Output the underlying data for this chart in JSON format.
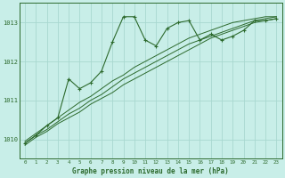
{
  "background_color": "#c8eee8",
  "plot_bg_color": "#c8eee8",
  "grid_color": "#a8d8d0",
  "line_color": "#2d6a2d",
  "xlabel": "Graphe pression niveau de la mer (hPa)",
  "ylim": [
    1009.5,
    1013.5
  ],
  "yticks": [
    1010,
    1011,
    1012,
    1013
  ],
  "xlim": [
    -0.5,
    23.5
  ],
  "xticks": [
    0,
    1,
    2,
    3,
    4,
    5,
    6,
    7,
    8,
    9,
    10,
    11,
    12,
    13,
    14,
    15,
    16,
    17,
    18,
    19,
    20,
    21,
    22,
    23
  ],
  "wiggly": [
    1009.9,
    1010.1,
    1010.35,
    1010.55,
    1011.55,
    1011.3,
    1011.45,
    1011.75,
    1012.5,
    1013.15,
    1013.15,
    1012.55,
    1012.4,
    1012.85,
    1013.0,
    1013.05,
    1012.55,
    1012.7,
    1012.55,
    1012.65,
    1012.8,
    1013.05,
    1013.05,
    1013.1
  ],
  "straight1": [
    1009.85,
    1010.05,
    1010.2,
    1010.4,
    1010.55,
    1010.7,
    1010.9,
    1011.05,
    1011.2,
    1011.4,
    1011.55,
    1011.7,
    1011.85,
    1012.0,
    1012.15,
    1012.3,
    1012.45,
    1012.6,
    1012.7,
    1012.8,
    1012.9,
    1013.0,
    1013.05,
    1013.1
  ],
  "straight2": [
    1009.9,
    1010.1,
    1010.25,
    1010.45,
    1010.65,
    1010.8,
    1011.0,
    1011.15,
    1011.35,
    1011.55,
    1011.7,
    1011.85,
    1012.0,
    1012.15,
    1012.3,
    1012.45,
    1012.55,
    1012.65,
    1012.75,
    1012.85,
    1012.95,
    1013.05,
    1013.1,
    1013.15
  ],
  "straight3": [
    1009.95,
    1010.15,
    1010.35,
    1010.55,
    1010.75,
    1010.95,
    1011.1,
    1011.3,
    1011.5,
    1011.65,
    1011.85,
    1012.0,
    1012.15,
    1012.3,
    1012.45,
    1012.6,
    1012.7,
    1012.8,
    1012.9,
    1013.0,
    1013.05,
    1013.1,
    1013.15,
    1013.15
  ]
}
